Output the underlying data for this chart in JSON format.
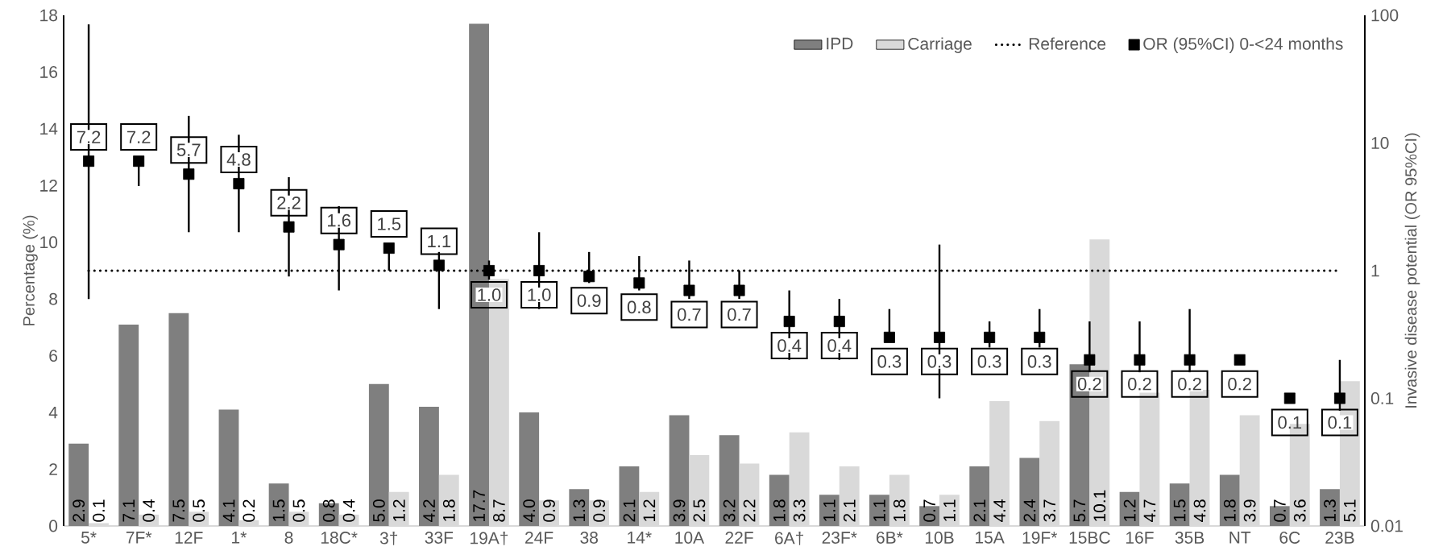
{
  "chart_data": {
    "type": "bar",
    "categories": [
      "5*",
      "7F*",
      "12F",
      "1*",
      "8",
      "18C*",
      "3†",
      "33F",
      "19A†",
      "24F",
      "38",
      "14*",
      "10A",
      "22F",
      "6A†",
      "23F*",
      "6B*",
      "10B",
      "15A",
      "19F*",
      "15BC",
      "16F",
      "35B",
      "NT",
      "6C",
      "23B"
    ],
    "ylabel": "Percentage (%)",
    "y2label": "Invasive disease potential (OR 95%CI)",
    "ylim": [
      0,
      18
    ],
    "yticks": [
      0,
      2,
      4,
      6,
      8,
      10,
      12,
      14,
      16,
      18
    ],
    "y2lim": [
      0.01,
      100
    ],
    "y2ticks": [
      0.01,
      0.1,
      1,
      10,
      100
    ],
    "log": "y2",
    "legend": "top right",
    "series": [
      {
        "name": "IPD",
        "color": "#7f7f7f",
        "values": [
          2.9,
          7.1,
          7.5,
          4.1,
          1.5,
          0.8,
          5.0,
          4.2,
          17.7,
          4.0,
          1.3,
          2.1,
          3.9,
          3.2,
          1.8,
          1.1,
          1.1,
          0.7,
          2.1,
          2.4,
          5.7,
          1.2,
          1.5,
          1.8,
          0.7,
          1.3
        ],
        "value_labels": [
          "2.9",
          "7.1",
          "7.5",
          "4.1",
          "1.5",
          "0.8",
          "5.0",
          "4.2",
          "17.7",
          "4.0",
          "1.3",
          "2.1",
          "3.9",
          "3.2",
          "1.8",
          "1.1",
          "1.1",
          "0.7",
          "2.1",
          "2.4",
          "5.7",
          "1.2",
          "1.5",
          "1.8",
          "0.7",
          "1.3"
        ]
      },
      {
        "name": "Carriage",
        "color": "#d9d9d9",
        "values": [
          0.1,
          0.4,
          0.5,
          0.2,
          0.5,
          0.4,
          1.2,
          1.8,
          8.7,
          0.9,
          0.9,
          1.2,
          2.5,
          2.2,
          3.3,
          2.1,
          1.8,
          1.1,
          4.4,
          3.7,
          10.1,
          4.7,
          4.8,
          3.9,
          3.6,
          5.1
        ],
        "value_labels": [
          "0.1",
          "0.4",
          "0.5",
          "0.2",
          "0.5",
          "0.4",
          "1.2",
          "1.8",
          "8.7",
          "0.9",
          "0.9",
          "1.2",
          "2.5",
          "2.2",
          "3.3",
          "2.1",
          "1.8",
          "1.1",
          "4.4",
          "3.7",
          "10.1",
          "4.7",
          "4.8",
          "3.9",
          "3.6",
          "5.1"
        ]
      },
      {
        "name": "OR (95%CI) 0-<24 months",
        "type": "scatter",
        "axis": "y2",
        "color": "#000000",
        "marker": "square",
        "values": [
          7.2,
          7.2,
          5.7,
          4.8,
          2.2,
          1.6,
          1.5,
          1.1,
          1.0,
          1.0,
          0.9,
          0.8,
          0.7,
          0.7,
          0.4,
          0.4,
          0.3,
          0.3,
          0.3,
          0.3,
          0.2,
          0.2,
          0.2,
          0.2,
          0.1,
          0.1
        ],
        "errors": [
          [
            0.6,
            85
          ],
          [
            4.6,
            7.2
          ],
          [
            2.0,
            16.3
          ],
          [
            2.0,
            11.6
          ],
          [
            0.9,
            5.4
          ],
          [
            0.7,
            3.2
          ],
          [
            1.0,
            1.5
          ],
          [
            0.5,
            1.4
          ],
          [
            0.85,
            1.2
          ],
          [
            0.5,
            2.0
          ],
          [
            0.8,
            1.4
          ],
          [
            0.7,
            1.3
          ],
          [
            0.6,
            1.2
          ],
          [
            0.6,
            1.0
          ],
          [
            0.2,
            0.7
          ],
          [
            0.2,
            0.6
          ],
          [
            0.3,
            0.5
          ],
          [
            0.1,
            1.6
          ],
          [
            0.25,
            0.4
          ],
          [
            0.25,
            0.5
          ],
          [
            0.16,
            0.4
          ],
          [
            0.16,
            0.4
          ],
          [
            0.16,
            0.5
          ],
          null,
          null,
          [
            0.08,
            0.2
          ]
        ],
        "value_labels": [
          "7.2",
          "7.2",
          "5.7",
          "4.8",
          "2.2",
          "1.6",
          "1.5",
          "1.1",
          "1.0",
          "1.0",
          "0.9",
          "0.8",
          "0.7",
          "0.7",
          "0.4",
          "0.4",
          "0.3",
          "0.3",
          "0.3",
          "0.3",
          "0.2",
          "0.2",
          "0.2",
          "0.2",
          "0.1",
          "0.1"
        ]
      }
    ],
    "ref_lines": [
      {
        "axis": "y2",
        "value": 1,
        "label": "Reference",
        "line_style": "dotted",
        "color": "#000000"
      }
    ]
  }
}
